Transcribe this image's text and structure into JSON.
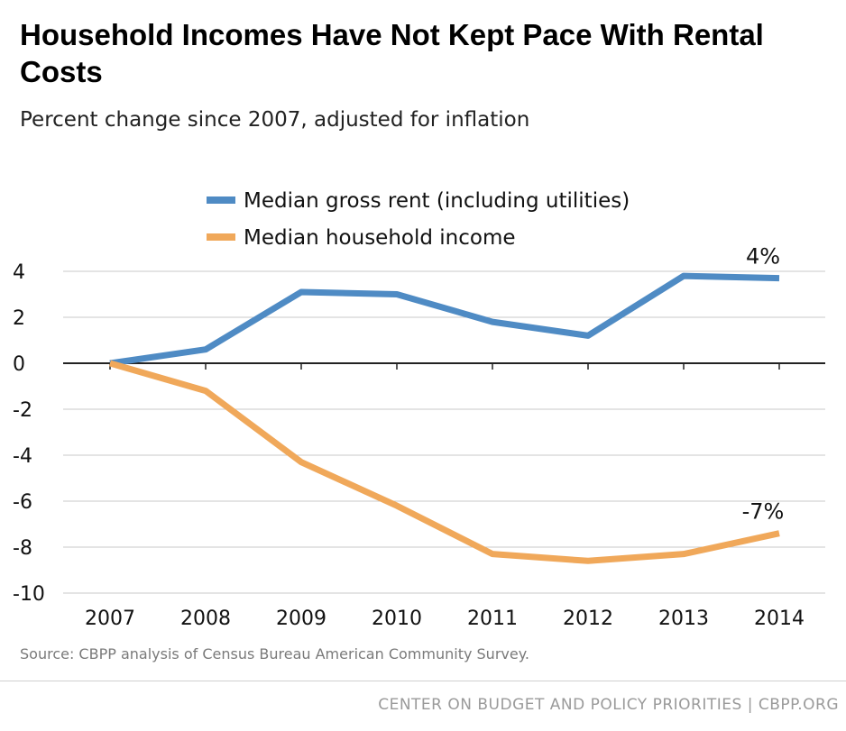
{
  "chart_data": {
    "type": "line",
    "title": "Household Incomes Have Not Kept Pace With Rental Costs",
    "subtitle": "Percent change since 2007, adjusted for inflation",
    "xlabel": "",
    "ylabel": "",
    "x": [
      "2007",
      "2008",
      "2009",
      "2010",
      "2011",
      "2012",
      "2013",
      "2014"
    ],
    "yticks": [
      "4",
      "2",
      "0",
      "-2",
      "-4",
      "-6",
      "-8",
      "-10"
    ],
    "ylim": [
      -10,
      4
    ],
    "grid": true,
    "legend_position": "top-center",
    "series": [
      {
        "name": "Median gross rent (including utilities)",
        "color": "#4f8bc4",
        "values": [
          0,
          0.6,
          3.1,
          3.0,
          1.8,
          1.2,
          3.8,
          3.7
        ],
        "end_label": "4%"
      },
      {
        "name": "Median household income",
        "color": "#f0a85a",
        "values": [
          0,
          -1.2,
          -4.3,
          -6.2,
          -8.3,
          -8.6,
          -8.3,
          -7.4
        ],
        "end_label": "-7%"
      }
    ]
  },
  "source": "Source: CBPP analysis of Census Bureau American Community Survey.",
  "footer": "CENTER ON BUDGET AND POLICY PRIORITIES | CBPP.ORG"
}
